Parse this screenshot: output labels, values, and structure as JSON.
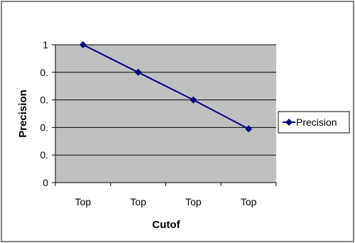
{
  "chart_data": {
    "type": "line",
    "title": "",
    "xlabel": "Cutof",
    "ylabel": "Precision",
    "categories": [
      "Top",
      "Top",
      "Top",
      "Top"
    ],
    "y_ticks": [
      {
        "value": 0,
        "label": "0"
      },
      {
        "value": 0.2,
        "label": "0."
      },
      {
        "value": 0.4,
        "label": "0."
      },
      {
        "value": 0.6,
        "label": "0."
      },
      {
        "value": 0.8,
        "label": "0."
      },
      {
        "value": 1.0,
        "label": "1"
      }
    ],
    "ylim": [
      0,
      1
    ],
    "grid": true,
    "legend_position": "right",
    "series": [
      {
        "name": "Precision",
        "values": [
          1.0,
          0.8,
          0.6,
          0.39
        ]
      }
    ],
    "colors": {
      "series": "#000080",
      "plot_background": "#c0c0c0",
      "gridline": "#000000"
    }
  }
}
